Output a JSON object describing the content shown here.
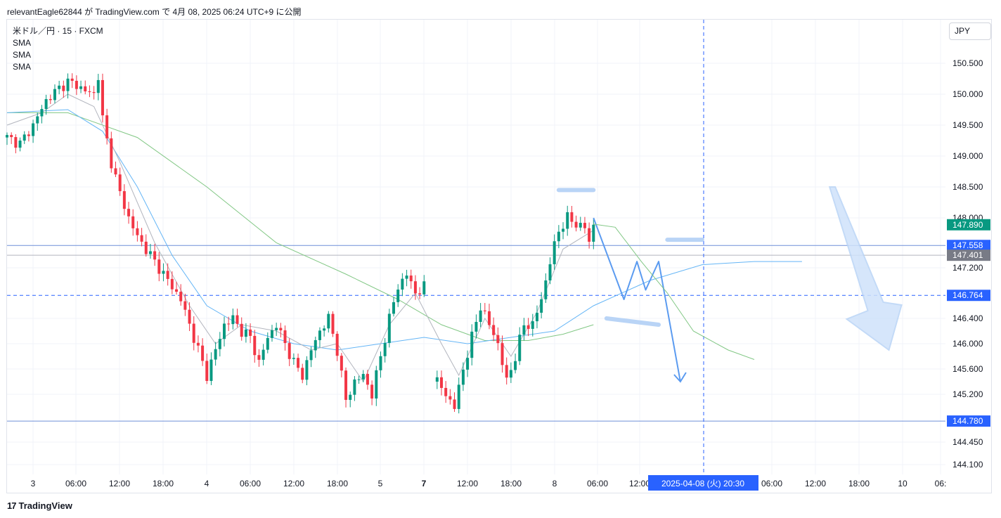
{
  "header": {
    "attribution": "relevantEagle62844 が TradingView.com で 4月 08, 2025 06:24 UTC+9 に公開"
  },
  "legend": {
    "symbol": "米ドル／円 · 15 · FXCM",
    "indicators": [
      "SMA",
      "SMA",
      "SMA"
    ]
  },
  "currency_button": "JPY",
  "footer": {
    "logo_mark": "17",
    "brand": "TradingView"
  },
  "colors": {
    "up": "#089981",
    "down": "#f23645",
    "blue": "#2962ff",
    "drawing": "#5b9bf0",
    "sma_fast": "#b2b5be",
    "sma_mid": "#64b5f6",
    "sma_slow": "#81c784"
  },
  "chart_data": {
    "type": "candlestick",
    "symbol": "USDJPY 15m FXCM",
    "y_ticks": [
      "150.500",
      "150.000",
      "149.500",
      "149.000",
      "148.500",
      "148.000",
      "147.200",
      "146.400",
      "146.000",
      "145.600",
      "145.200",
      "144.450",
      "144.100"
    ],
    "x_ticks": [
      "3",
      "06:00",
      "12:00",
      "18:00",
      "4",
      "06:00",
      "12:00",
      "18:00",
      "5",
      "7",
      "12:00",
      "18:00",
      "8",
      "06:00",
      "12:00",
      "06:00",
      "12:00",
      "18:00",
      "10",
      "06:"
    ],
    "price_labels": [
      {
        "text": "147.890",
        "kind": "last",
        "color": "#089981"
      },
      {
        "text": "147.558",
        "kind": "hline",
        "color": "#2962ff"
      },
      {
        "text": "147.401",
        "kind": "hline",
        "color": "#787b86"
      },
      {
        "text": "146.764",
        "kind": "crosshair",
        "color": "#2962ff"
      },
      {
        "text": "144.780",
        "kind": "hline",
        "color": "#2962ff"
      }
    ],
    "crosshair_time": "2025-04-08 (火)   20:30",
    "horizontal_lines": [
      147.558,
      147.401,
      144.78
    ],
    "series_close": [
      [
        0,
        149.3
      ],
      [
        3,
        149.2
      ],
      [
        6,
        149.5
      ],
      [
        9,
        149.9
      ],
      [
        12,
        150.1
      ],
      [
        14,
        150.2
      ],
      [
        16,
        150.15
      ],
      [
        18,
        150.05
      ],
      [
        20,
        150.0
      ],
      [
        21,
        150.3
      ],
      [
        22,
        149.6
      ],
      [
        24,
        148.9
      ],
      [
        26,
        148.4
      ],
      [
        28,
        148.0
      ],
      [
        30,
        147.7
      ],
      [
        32,
        147.5
      ],
      [
        34,
        147.3
      ],
      [
        36,
        147.1
      ],
      [
        38,
        146.9
      ],
      [
        40,
        146.7
      ],
      [
        42,
        146.3
      ],
      [
        44,
        145.9
      ],
      [
        46,
        145.5
      ],
      [
        48,
        145.9
      ],
      [
        50,
        146.3
      ],
      [
        52,
        146.4
      ],
      [
        54,
        146.2
      ],
      [
        56,
        146.1
      ],
      [
        58,
        145.7
      ],
      [
        60,
        146.1
      ],
      [
        62,
        146.3
      ],
      [
        64,
        146.0
      ],
      [
        66,
        145.7
      ],
      [
        68,
        145.5
      ],
      [
        70,
        145.9
      ],
      [
        72,
        146.2
      ],
      [
        74,
        146.4
      ],
      [
        76,
        145.9
      ],
      [
        78,
        145.1
      ],
      [
        80,
        145.4
      ],
      [
        82,
        145.5
      ],
      [
        84,
        145.2
      ],
      [
        86,
        145.8
      ],
      [
        88,
        146.4
      ],
      [
        90,
        146.9
      ],
      [
        92,
        147.1
      ],
      [
        94,
        146.8
      ],
      [
        96,
        146.9
      ],
      [
        99,
        145.4
      ],
      [
        101,
        145.2
      ],
      [
        103,
        145.0
      ],
      [
        105,
        145.6
      ],
      [
        107,
        146.1
      ],
      [
        109,
        146.6
      ],
      [
        111,
        146.3
      ],
      [
        113,
        146.0
      ],
      [
        115,
        145.4
      ],
      [
        117,
        145.8
      ],
      [
        119,
        146.3
      ],
      [
        121,
        146.3
      ],
      [
        123,
        146.7
      ],
      [
        125,
        147.3
      ],
      [
        127,
        147.8
      ],
      [
        129,
        148.0
      ],
      [
        131,
        147.9
      ],
      [
        133,
        147.85
      ],
      [
        134,
        147.6
      ],
      [
        135,
        147.9
      ]
    ],
    "series_sma_fast": [
      [
        0,
        149.5
      ],
      [
        8,
        149.7
      ],
      [
        14,
        150.0
      ],
      [
        20,
        149.8
      ],
      [
        26,
        148.9
      ],
      [
        34,
        147.6
      ],
      [
        42,
        146.6
      ],
      [
        48,
        146.0
      ],
      [
        54,
        146.3
      ],
      [
        62,
        146.2
      ],
      [
        70,
        145.9
      ],
      [
        76,
        146.0
      ],
      [
        82,
        145.4
      ],
      [
        88,
        146.3
      ],
      [
        94,
        146.8
      ],
      [
        100,
        146.0
      ],
      [
        104,
        145.5
      ],
      [
        110,
        146.4
      ],
      [
        116,
        145.8
      ],
      [
        122,
        146.5
      ],
      [
        128,
        147.5
      ],
      [
        135,
        147.8
      ]
    ],
    "series_sma_mid": [
      [
        0,
        149.7
      ],
      [
        14,
        149.75
      ],
      [
        22,
        149.4
      ],
      [
        30,
        148.5
      ],
      [
        38,
        147.4
      ],
      [
        46,
        146.6
      ],
      [
        56,
        146.2
      ],
      [
        66,
        146.0
      ],
      [
        76,
        145.9
      ],
      [
        86,
        146.0
      ],
      [
        96,
        146.1
      ],
      [
        106,
        146.0
      ],
      [
        116,
        146.1
      ],
      [
        126,
        146.2
      ],
      [
        135,
        146.6
      ],
      [
        148,
        147.0
      ],
      [
        160,
        147.25
      ],
      [
        172,
        147.3
      ],
      [
        183,
        147.3
      ]
    ],
    "series_sma_slow": [
      [
        0,
        149.7
      ],
      [
        14,
        149.7
      ],
      [
        30,
        149.3
      ],
      [
        46,
        148.5
      ],
      [
        62,
        147.6
      ],
      [
        78,
        147.1
      ],
      [
        90,
        146.7
      ],
      [
        100,
        146.3
      ],
      [
        110,
        146.05
      ],
      [
        120,
        146.05
      ],
      [
        128,
        146.15
      ],
      [
        135,
        146.3
      ]
    ],
    "drawings": {
      "zigzag_arrow": [
        [
          135,
          148.0
        ],
        [
          142,
          146.7
        ],
        [
          145,
          147.3
        ],
        [
          147,
          146.85
        ],
        [
          150,
          147.3
        ],
        [
          155,
          145.4
        ]
      ],
      "projection_curve": [
        [
          135,
          147.9
        ],
        [
          140,
          147.85
        ],
        [
          146,
          147.3
        ],
        [
          152,
          146.8
        ],
        [
          158,
          146.2
        ],
        [
          166,
          145.9
        ],
        [
          172,
          145.75
        ]
      ],
      "big_arrow": [
        [
          190,
          148.5
        ],
        [
          203,
          145.9
        ]
      ],
      "strokes": [
        [
          [
            127,
            148.45
          ],
          [
            135,
            148.45
          ]
        ],
        [
          [
            152,
            147.65
          ],
          [
            160,
            147.65
          ]
        ],
        [
          [
            138,
            146.4
          ],
          [
            150,
            146.3
          ]
        ]
      ]
    }
  }
}
